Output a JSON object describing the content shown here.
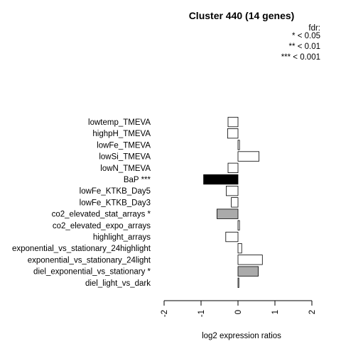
{
  "chart_data": {
    "type": "bar",
    "orientation": "horizontal",
    "title": "Cluster 440 (14 genes)",
    "xlabel": "log2 expression ratios",
    "ylabel": "",
    "xlim": [
      -2,
      2
    ],
    "xticks": [
      "-2",
      "-1",
      "0",
      "1",
      "2"
    ],
    "legend": {
      "title": "fdr:",
      "entries": [
        "* < 0.05",
        "** < 0.01",
        "*** < 0.001"
      ],
      "placement": "top-right"
    },
    "colors": {
      "none": "#ffffff",
      "p05": "#aaaaaa",
      "p001": "#000000",
      "stroke": "#000000"
    },
    "categories": [
      "lowtemp_TMEVA",
      "highpH_TMEVA",
      "lowFe_TMEVA",
      "lowSi_TMEVA",
      "lowN_TMEVA",
      "BaP ***",
      "lowFe_KTKB_Day5",
      "lowFe_KTKB_Day3",
      "co2_elevated_stat_arrays *",
      "co2_elevated_expo_arrays",
      "highlight_arrays",
      "exponential_vs_stationary_24highlight",
      "exponential_vs_stationary_24light",
      "diel_exponential_vs_stationary *",
      "diel_light_vs_dark"
    ],
    "values": [
      -0.27,
      -0.28,
      0.04,
      0.57,
      -0.27,
      -0.93,
      -0.32,
      -0.18,
      -0.57,
      0.04,
      -0.33,
      0.1,
      0.66,
      0.55,
      0.02
    ],
    "significance": [
      "none",
      "none",
      "none",
      "none",
      "none",
      "p001",
      "none",
      "none",
      "p05",
      "none",
      "none",
      "none",
      "none",
      "p05",
      "none"
    ]
  }
}
